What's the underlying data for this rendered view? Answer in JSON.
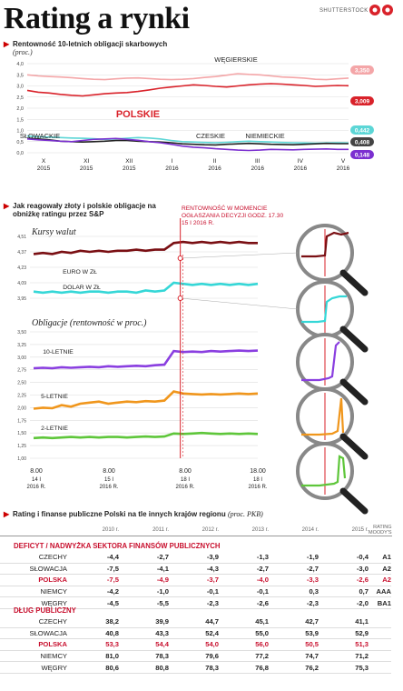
{
  "header": {
    "title": "Rating a rynki",
    "credit": "SHUTTERSTOCK"
  },
  "chart_data": [
    {
      "type": "line",
      "title": "Rentowność 10-letnich obligacji skarbowych",
      "subtitle": "(proc.)",
      "ylim": [
        0,
        4.0
      ],
      "yticks": [
        "4,0",
        "3,5",
        "3,0",
        "2,5",
        "2,0",
        "1,5",
        "1,0",
        "0,5",
        "0,0"
      ],
      "xticks": [
        [
          "X",
          "2015"
        ],
        [
          "XI",
          "2015"
        ],
        [
          "XII",
          "2015"
        ],
        [
          "I",
          "2016"
        ],
        [
          "II",
          "2016"
        ],
        [
          "III",
          "2016"
        ],
        [
          "IV",
          "2016"
        ],
        [
          "V",
          "2016"
        ]
      ],
      "series": [
        {
          "name": "WĘGIERSKIE",
          "color": "#f4a6a8",
          "end_label": "3,350",
          "values": [
            3.5,
            3.45,
            3.42,
            3.4,
            3.37,
            3.33,
            3.3,
            3.28,
            3.32,
            3.35,
            3.36,
            3.33,
            3.3,
            3.28,
            3.3,
            3.33,
            3.38,
            3.42,
            3.48,
            3.55,
            3.52,
            3.5,
            3.45,
            3.4,
            3.38,
            3.35,
            3.3,
            3.28,
            3.32,
            3.35
          ]
        },
        {
          "name": "POLSKIE",
          "color": "#d9222a",
          "end_label": "3,009",
          "values": [
            2.8,
            2.72,
            2.68,
            2.62,
            2.58,
            2.55,
            2.6,
            2.65,
            2.68,
            2.7,
            2.75,
            2.82,
            2.9,
            2.95,
            3.0,
            3.05,
            3.02,
            2.98,
            2.95,
            3.0,
            3.05,
            3.08,
            3.1,
            3.08,
            3.05,
            3.02,
            2.98,
            3.0,
            3.02,
            3.01
          ]
        },
        {
          "name": "SŁOWACKIE",
          "color": "#5cd6d6",
          "end_label": "0,442",
          "values": [
            0.75,
            0.72,
            0.7,
            0.68,
            0.66,
            0.65,
            0.63,
            0.6,
            0.62,
            0.65,
            0.68,
            0.66,
            0.62,
            0.55,
            0.5,
            0.48,
            0.46,
            0.45,
            0.47,
            0.5,
            0.52,
            0.5,
            0.48,
            0.46,
            0.45,
            0.44,
            0.43,
            0.44,
            0.45,
            0.44
          ]
        },
        {
          "name": "CZESKIE",
          "color": "#222222",
          "end_label": "0,408",
          "values": [
            0.65,
            0.62,
            0.58,
            0.52,
            0.5,
            0.48,
            0.5,
            0.52,
            0.55,
            0.55,
            0.52,
            0.5,
            0.48,
            0.45,
            0.4,
            0.38,
            0.36,
            0.35,
            0.38,
            0.4,
            0.42,
            0.4,
            0.38,
            0.37,
            0.36,
            0.38,
            0.4,
            0.42,
            0.41,
            0.41
          ]
        },
        {
          "name": "NIEMIECKIE",
          "color": "#7b2fd0",
          "end_label": "0,148",
          "values": [
            0.62,
            0.58,
            0.55,
            0.52,
            0.5,
            0.55,
            0.6,
            0.62,
            0.64,
            0.6,
            0.56,
            0.5,
            0.45,
            0.38,
            0.3,
            0.25,
            0.22,
            0.18,
            0.15,
            0.12,
            0.1,
            0.12,
            0.15,
            0.14,
            0.13,
            0.15,
            0.16,
            0.17,
            0.15,
            0.15
          ]
        }
      ]
    },
    {
      "type": "line",
      "title": "Jak reagowały złoty i polskie obligacje na obniżkę ratingu przez S&P",
      "annotation": "RENTOWNOŚĆ W MOMENCIE OGŁASZANIA DECYZJI GODZ. 17.30 15 I 2016 R.",
      "panel_title": "Kursy walut",
      "ylim": [
        3.95,
        4.51
      ],
      "yticks": [
        "4,51",
        "4,37",
        "4,23",
        "4,09",
        "3,95"
      ],
      "series": [
        {
          "name": "EURO W ZŁ",
          "color": "#7a0f13",
          "values": [
            4.35,
            4.36,
            4.35,
            4.37,
            4.36,
            4.38,
            4.37,
            4.38,
            4.37,
            4.38,
            4.38,
            4.39,
            4.38,
            4.39,
            4.39,
            4.45,
            4.46,
            4.45,
            4.46,
            4.45,
            4.46,
            4.45,
            4.46,
            4.45,
            4.45
          ]
        },
        {
          "name": "DOLAR W ZŁ",
          "color": "#35d7d7",
          "values": [
            4.01,
            4.0,
            4.01,
            4.0,
            4.01,
            4.0,
            4.01,
            4.01,
            4.0,
            4.01,
            4.01,
            4.0,
            4.02,
            4.01,
            4.02,
            4.09,
            4.08,
            4.07,
            4.08,
            4.07,
            4.08,
            4.07,
            4.08,
            4.07,
            4.08
          ]
        }
      ]
    },
    {
      "type": "line",
      "panel_title": "Obligacje (rentowność w proc.)",
      "ylim": [
        1.0,
        3.5
      ],
      "yticks": [
        "3,50",
        "3,25",
        "3,00",
        "2,75",
        "2,50",
        "2,25",
        "2,00",
        "1,75",
        "1,50",
        "1,25",
        "1,00"
      ],
      "xticks": [
        [
          "8.00",
          "14 I",
          "2016 R."
        ],
        [
          "8.00",
          "15 I",
          "2016 R."
        ],
        [
          "8.00",
          "18 I",
          "2016 R."
        ],
        [
          "18.00",
          "18 I",
          "2016 R."
        ]
      ],
      "series": [
        {
          "name": "10-LETNIE",
          "color": "#8a3fe0",
          "values": [
            2.78,
            2.79,
            2.78,
            2.8,
            2.79,
            2.8,
            2.81,
            2.8,
            2.82,
            2.81,
            2.82,
            2.83,
            2.82,
            2.84,
            2.85,
            3.12,
            3.1,
            3.11,
            3.1,
            3.12,
            3.11,
            3.12,
            3.13,
            3.12,
            3.13
          ]
        },
        {
          "name": "5-LETNIE",
          "color": "#f0961c",
          "values": [
            1.98,
            2.0,
            1.99,
            2.05,
            2.02,
            2.08,
            2.1,
            2.12,
            2.08,
            2.1,
            2.12,
            2.11,
            2.13,
            2.12,
            2.14,
            2.32,
            2.28,
            2.27,
            2.26,
            2.27,
            2.26,
            2.27,
            2.28,
            2.27,
            2.28
          ]
        },
        {
          "name": "2-LETNIE",
          "color": "#5ec63a",
          "values": [
            1.4,
            1.41,
            1.4,
            1.41,
            1.42,
            1.41,
            1.42,
            1.41,
            1.42,
            1.42,
            1.41,
            1.42,
            1.43,
            1.42,
            1.43,
            1.49,
            1.48,
            1.49,
            1.5,
            1.49,
            1.48,
            1.49,
            1.48,
            1.49,
            1.48
          ]
        }
      ]
    },
    {
      "type": "table",
      "title": "Rating i finanse publiczne Polski na tle innych krajów regionu",
      "unit": "(proc. PKB)",
      "columns": [
        "2010 r.",
        "2011 r.",
        "2012 r.",
        "2013 r.",
        "2014 r.",
        "2015 r.",
        "RATING MOODY'S"
      ],
      "groups": [
        {
          "name": "DEFICYT / NADWYŻKA SEKTORA FINANSÓW PUBLICZNYCH",
          "rows": [
            {
              "country": "CZECHY",
              "values": [
                "-4,4",
                "-2,7",
                "-3,9",
                "-1,3",
                "-1,9",
                "-0,4"
              ],
              "rating": "A1"
            },
            {
              "country": "SŁOWACJA",
              "values": [
                "-7,5",
                "-4,1",
                "-4,3",
                "-2,7",
                "-2,7",
                "-3,0"
              ],
              "rating": "A2"
            },
            {
              "country": "POLSKA",
              "values": [
                "-7,5",
                "-4,9",
                "-3,7",
                "-4,0",
                "-3,3",
                "-2,6"
              ],
              "rating": "A2"
            },
            {
              "country": "NIEMCY",
              "values": [
                "-4,2",
                "-1,0",
                "-0,1",
                "-0,1",
                "0,3",
                "0,7"
              ],
              "rating": "AAA"
            },
            {
              "country": "WĘGRY",
              "values": [
                "-4,5",
                "-5,5",
                "-2,3",
                "-2,6",
                "-2,3",
                "-2,0"
              ],
              "rating": "BA1"
            }
          ]
        },
        {
          "name": "DŁUG PUBLICZNY",
          "rows": [
            {
              "country": "CZECHY",
              "values": [
                "38,2",
                "39,9",
                "44,7",
                "45,1",
                "42,7",
                "41,1"
              ],
              "rating": ""
            },
            {
              "country": "SŁOWACJA",
              "values": [
                "40,8",
                "43,3",
                "52,4",
                "55,0",
                "53,9",
                "52,9"
              ],
              "rating": ""
            },
            {
              "country": "POLSKA",
              "values": [
                "53,3",
                "54,4",
                "54,0",
                "56,0",
                "50,5",
                "51,3"
              ],
              "rating": ""
            },
            {
              "country": "NIEMCY",
              "values": [
                "81,0",
                "78,3",
                "79,6",
                "77,2",
                "74,7",
                "71,2"
              ],
              "rating": ""
            },
            {
              "country": "WĘGRY",
              "values": [
                "80,6",
                "80,8",
                "78,3",
                "76,8",
                "76,2",
                "75,3"
              ],
              "rating": ""
            }
          ]
        }
      ]
    }
  ]
}
